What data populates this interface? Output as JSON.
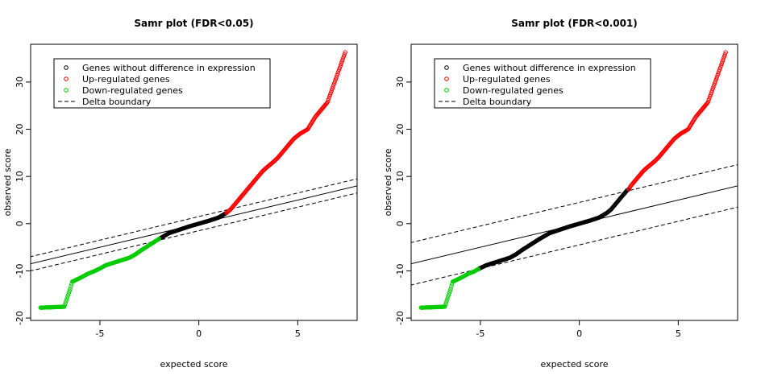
{
  "chart_data": [
    {
      "type": "scatter",
      "title": "Samr plot (FDR<0.05)",
      "xlabel": "expected score",
      "ylabel": "observed score",
      "xlim": [
        -8.5,
        8.0
      ],
      "ylim": [
        -20.5,
        38.0
      ],
      "xticks": [
        -5,
        0,
        5
      ],
      "yticks": [
        -20,
        -10,
        0,
        10,
        20,
        30
      ],
      "legend": {
        "position": "top-left",
        "entries": [
          {
            "label": "Genes without difference in expression",
            "marker": "circle",
            "color": "#000000"
          },
          {
            "label": "Up-regulated genes",
            "marker": "circle",
            "color": "#ff0000"
          },
          {
            "label": "Down-regulated genes",
            "marker": "circle",
            "color": "#00cc00"
          },
          {
            "label": "Delta boundary",
            "marker": "dashed-line",
            "color": "#000000"
          }
        ]
      },
      "diagonal_line": {
        "slope": 1,
        "intercept": 0
      },
      "delta_boundary": {
        "slope": 1,
        "offsets": [
          1.5,
          -1.5
        ]
      },
      "cutoffs": {
        "lower_x": -2.0,
        "upper_x": 1.4
      },
      "series": [
        {
          "color": "#000000",
          "points": [
            [
              -2.0,
              -3.2
            ],
            [
              -1.5,
              -2.0
            ],
            [
              -1.0,
              -1.3
            ],
            [
              -0.5,
              -0.6
            ],
            [
              0.0,
              0.0
            ],
            [
              0.5,
              0.6
            ],
            [
              1.0,
              1.3
            ],
            [
              1.4,
              2.3
            ]
          ]
        },
        {
          "color": "#ff0000",
          "points": [
            [
              1.4,
              2.3
            ],
            [
              1.6,
              3.0
            ],
            [
              1.8,
              4.0
            ],
            [
              2.0,
              5.0
            ],
            [
              2.2,
              6.0
            ],
            [
              2.4,
              7.0
            ],
            [
              2.6,
              8.0
            ],
            [
              2.8,
              9.0
            ],
            [
              3.0,
              10.0
            ],
            [
              3.2,
              11.0
            ],
            [
              3.4,
              11.8
            ],
            [
              3.6,
              12.5
            ],
            [
              3.8,
              13.2
            ],
            [
              4.0,
              14.0
            ],
            [
              4.2,
              15.0
            ],
            [
              4.5,
              16.5
            ],
            [
              4.8,
              18.0
            ],
            [
              5.1,
              19.0
            ],
            [
              5.5,
              20.0
            ],
            [
              5.9,
              22.7
            ],
            [
              6.5,
              25.7
            ],
            [
              7.4,
              36.3
            ]
          ]
        },
        {
          "color": "#00cc00",
          "points": [
            [
              -2.0,
              -3.2
            ],
            [
              -2.3,
              -4.0
            ],
            [
              -2.6,
              -4.8
            ],
            [
              -2.9,
              -5.6
            ],
            [
              -3.2,
              -6.5
            ],
            [
              -3.5,
              -7.2
            ],
            [
              -3.8,
              -7.6
            ],
            [
              -4.1,
              -8.0
            ],
            [
              -4.4,
              -8.4
            ],
            [
              -4.7,
              -8.8
            ],
            [
              -5.0,
              -9.5
            ],
            [
              -5.3,
              -10.1
            ],
            [
              -5.6,
              -10.6
            ],
            [
              -6.0,
              -11.5
            ],
            [
              -6.4,
              -12.3
            ],
            [
              -6.5,
              -13.8
            ],
            [
              -6.8,
              -17.6
            ],
            [
              -8.0,
              -17.8
            ]
          ]
        }
      ]
    },
    {
      "type": "scatter",
      "title": "Samr plot (FDR<0.001)",
      "xlabel": "expected score",
      "ylabel": "observed score",
      "xlim": [
        -8.5,
        8.0
      ],
      "ylim": [
        -20.5,
        38.0
      ],
      "xticks": [
        -5,
        0,
        5
      ],
      "yticks": [
        -20,
        -10,
        0,
        10,
        20,
        30
      ],
      "legend": {
        "position": "top-left",
        "entries": [
          {
            "label": "Genes without difference in expression",
            "marker": "circle",
            "color": "#000000"
          },
          {
            "label": "Up-regulated genes",
            "marker": "circle",
            "color": "#ff0000"
          },
          {
            "label": "Down-regulated genes",
            "marker": "circle",
            "color": "#00cc00"
          },
          {
            "label": "Delta boundary",
            "marker": "dashed-line",
            "color": "#000000"
          }
        ]
      },
      "diagonal_line": {
        "slope": 1,
        "intercept": 0
      },
      "delta_boundary": {
        "slope": 1,
        "offsets": [
          4.5,
          -4.5
        ]
      },
      "cutoffs": {
        "lower_x": -5.1,
        "upper_x": 2.5
      },
      "series": [
        {
          "color": "#000000",
          "points": [
            [
              -5.1,
              -9.6
            ],
            [
              -4.7,
              -8.8
            ],
            [
              -4.4,
              -8.4
            ],
            [
              -4.1,
              -8.0
            ],
            [
              -3.8,
              -7.6
            ],
            [
              -3.5,
              -7.2
            ],
            [
              -3.2,
              -6.5
            ],
            [
              -2.9,
              -5.6
            ],
            [
              -2.6,
              -4.8
            ],
            [
              -2.3,
              -4.0
            ],
            [
              -2.0,
              -3.2
            ],
            [
              -1.5,
              -2.0
            ],
            [
              -1.0,
              -1.3
            ],
            [
              -0.5,
              -0.6
            ],
            [
              0.0,
              0.0
            ],
            [
              0.5,
              0.6
            ],
            [
              1.0,
              1.3
            ],
            [
              1.4,
              2.3
            ],
            [
              1.6,
              3.0
            ],
            [
              1.8,
              4.0
            ],
            [
              2.0,
              5.0
            ],
            [
              2.2,
              6.0
            ],
            [
              2.4,
              7.0
            ],
            [
              2.5,
              7.3
            ]
          ]
        },
        {
          "color": "#ff0000",
          "points": [
            [
              2.5,
              7.3
            ],
            [
              2.6,
              8.0
            ],
            [
              2.8,
              9.0
            ],
            [
              3.0,
              10.0
            ],
            [
              3.2,
              11.0
            ],
            [
              3.4,
              11.8
            ],
            [
              3.6,
              12.5
            ],
            [
              3.8,
              13.2
            ],
            [
              4.0,
              14.0
            ],
            [
              4.2,
              15.0
            ],
            [
              4.5,
              16.5
            ],
            [
              4.8,
              18.0
            ],
            [
              5.1,
              19.0
            ],
            [
              5.5,
              20.0
            ],
            [
              5.9,
              22.7
            ],
            [
              6.5,
              25.7
            ],
            [
              7.4,
              36.3
            ]
          ]
        },
        {
          "color": "#00cc00",
          "points": [
            [
              -5.1,
              -9.6
            ],
            [
              -5.3,
              -10.1
            ],
            [
              -5.6,
              -10.6
            ],
            [
              -6.0,
              -11.5
            ],
            [
              -6.4,
              -12.3
            ],
            [
              -6.5,
              -13.8
            ],
            [
              -6.8,
              -17.6
            ],
            [
              -8.0,
              -17.8
            ]
          ]
        }
      ]
    }
  ]
}
